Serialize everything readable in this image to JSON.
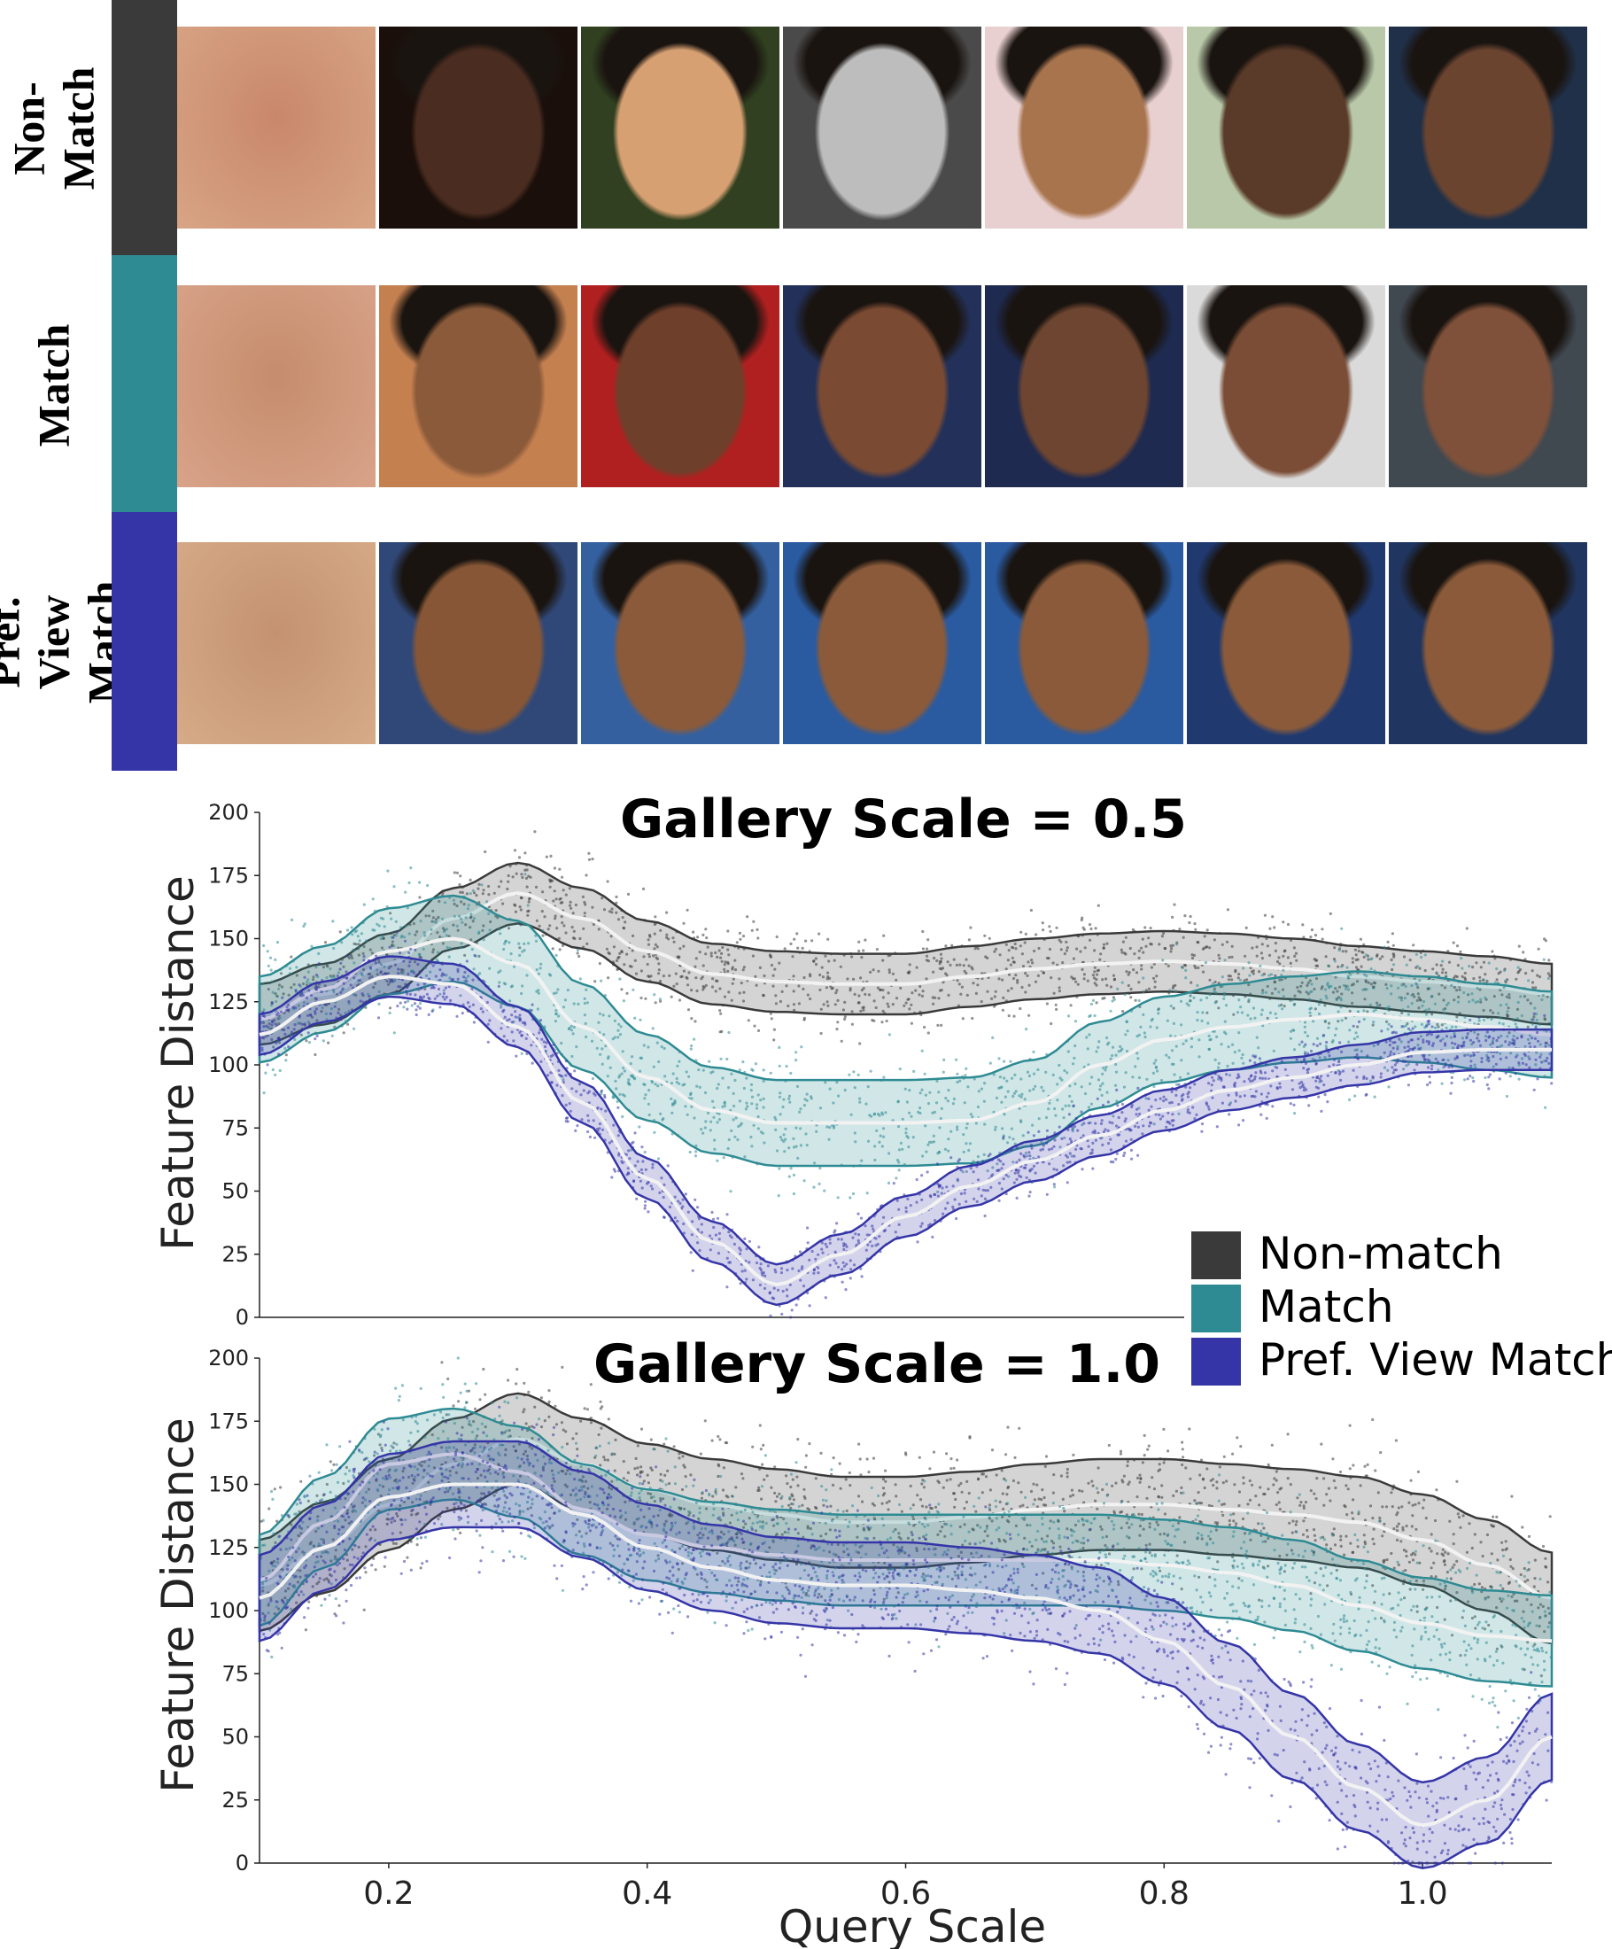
{
  "colors": {
    "nonmatch": "#3a3a3a",
    "match": "#2e8b93",
    "pref": "#3535a8"
  },
  "face_rows": [
    {
      "label": "Non-Match",
      "color": "#3a3a3a"
    },
    {
      "label": "Match",
      "color": "#2e8b93"
    },
    {
      "label": "Pref. View\nMatch",
      "color": "#3535a8"
    }
  ],
  "face_image_names": [
    [
      "blurry-face-icon",
      "man-face-icon",
      "smiling-man-face-icon",
      "cowboy-hat-face-icon",
      "smiling-man-face-icon",
      "soldier-beret-face-icon",
      "woman-face-icon"
    ],
    [
      "blurry-face-icon",
      "woman-face-icon",
      "woman-face-icon",
      "woman-face-icon",
      "woman-face-icon",
      "woman-sunglasses-face-icon",
      "woman-crowd-face-icon"
    ],
    [
      "blurry-face-icon",
      "woman-face-icon",
      "woman-face-icon",
      "woman-face-icon",
      "woman-face-icon",
      "woman-face-icon",
      "woman-face-icon"
    ]
  ],
  "legend": {
    "placement": "between-plots-right",
    "items": [
      {
        "label": "Non-match",
        "color": "#3a3a3a"
      },
      {
        "label": "Match",
        "color": "#2e8b93"
      },
      {
        "label": "Pref. View Match",
        "color": "#3535a8"
      }
    ]
  },
  "chart_data": [
    {
      "type": "line",
      "title": "Gallery Scale = 0.5",
      "xlabel": "",
      "ylabel": "Feature Distance",
      "xlim": [
        0.1,
        1.1
      ],
      "ylim": [
        0,
        200
      ],
      "yticks": [
        "0",
        "25",
        "50",
        "75",
        "100",
        "125",
        "150",
        "175",
        "200"
      ],
      "xticks": [],
      "grid": false,
      "x": [
        0.1,
        0.15,
        0.2,
        0.25,
        0.3,
        0.35,
        0.4,
        0.45,
        0.5,
        0.55,
        0.6,
        0.65,
        0.7,
        0.75,
        0.8,
        0.85,
        0.9,
        0.95,
        1.0,
        1.05,
        1.1
      ],
      "series": [
        {
          "name": "Non-match",
          "mean": [
            120,
            128,
            140,
            158,
            168,
            158,
            145,
            136,
            133,
            132,
            132,
            135,
            138,
            140,
            141,
            140,
            138,
            135,
            133,
            131,
            128
          ],
          "band": 12
        },
        {
          "name": "Match",
          "mean": [
            118,
            130,
            145,
            150,
            140,
            115,
            95,
            82,
            77,
            77,
            77,
            78,
            85,
            100,
            110,
            115,
            118,
            120,
            118,
            115,
            112
          ],
          "band": 17
        },
        {
          "name": "Pref. View Match",
          "mean": [
            112,
            125,
            135,
            132,
            115,
            85,
            55,
            30,
            13,
            25,
            40,
            52,
            62,
            72,
            82,
            90,
            95,
            100,
            105,
            106,
            106
          ],
          "band": 8
        }
      ]
    },
    {
      "type": "line",
      "title": "Gallery Scale = 1.0",
      "xlabel": "Query Scale",
      "ylabel": "Feature Distance",
      "xlim": [
        0.1,
        1.1
      ],
      "ylim": [
        0,
        200
      ],
      "yticks": [
        "0",
        "25",
        "50",
        "75",
        "100",
        "125",
        "150",
        "175",
        "200"
      ],
      "xticks": [
        "0.2",
        "0.4",
        "0.6",
        "0.8",
        "1.0"
      ],
      "grid": false,
      "x": [
        0.1,
        0.15,
        0.2,
        0.25,
        0.3,
        0.35,
        0.4,
        0.45,
        0.5,
        0.55,
        0.6,
        0.65,
        0.7,
        0.75,
        0.8,
        0.85,
        0.9,
        0.95,
        1.0,
        1.05,
        1.1
      ],
      "series": [
        {
          "name": "Non-match",
          "mean": [
            110,
            125,
            142,
            158,
            168,
            158,
            148,
            142,
            138,
            135,
            135,
            137,
            140,
            142,
            142,
            140,
            138,
            135,
            128,
            118,
            105
          ],
          "band": 18
        },
        {
          "name": "Match",
          "mean": [
            112,
            135,
            158,
            162,
            155,
            140,
            130,
            125,
            122,
            120,
            120,
            120,
            120,
            120,
            118,
            115,
            110,
            102,
            95,
            90,
            88
          ],
          "band": 18
        },
        {
          "name": "Pref. View Match",
          "mean": [
            105,
            125,
            145,
            150,
            150,
            138,
            125,
            117,
            112,
            110,
            110,
            108,
            105,
            100,
            88,
            70,
            50,
            30,
            15,
            25,
            50
          ],
          "band": 17
        }
      ]
    }
  ]
}
